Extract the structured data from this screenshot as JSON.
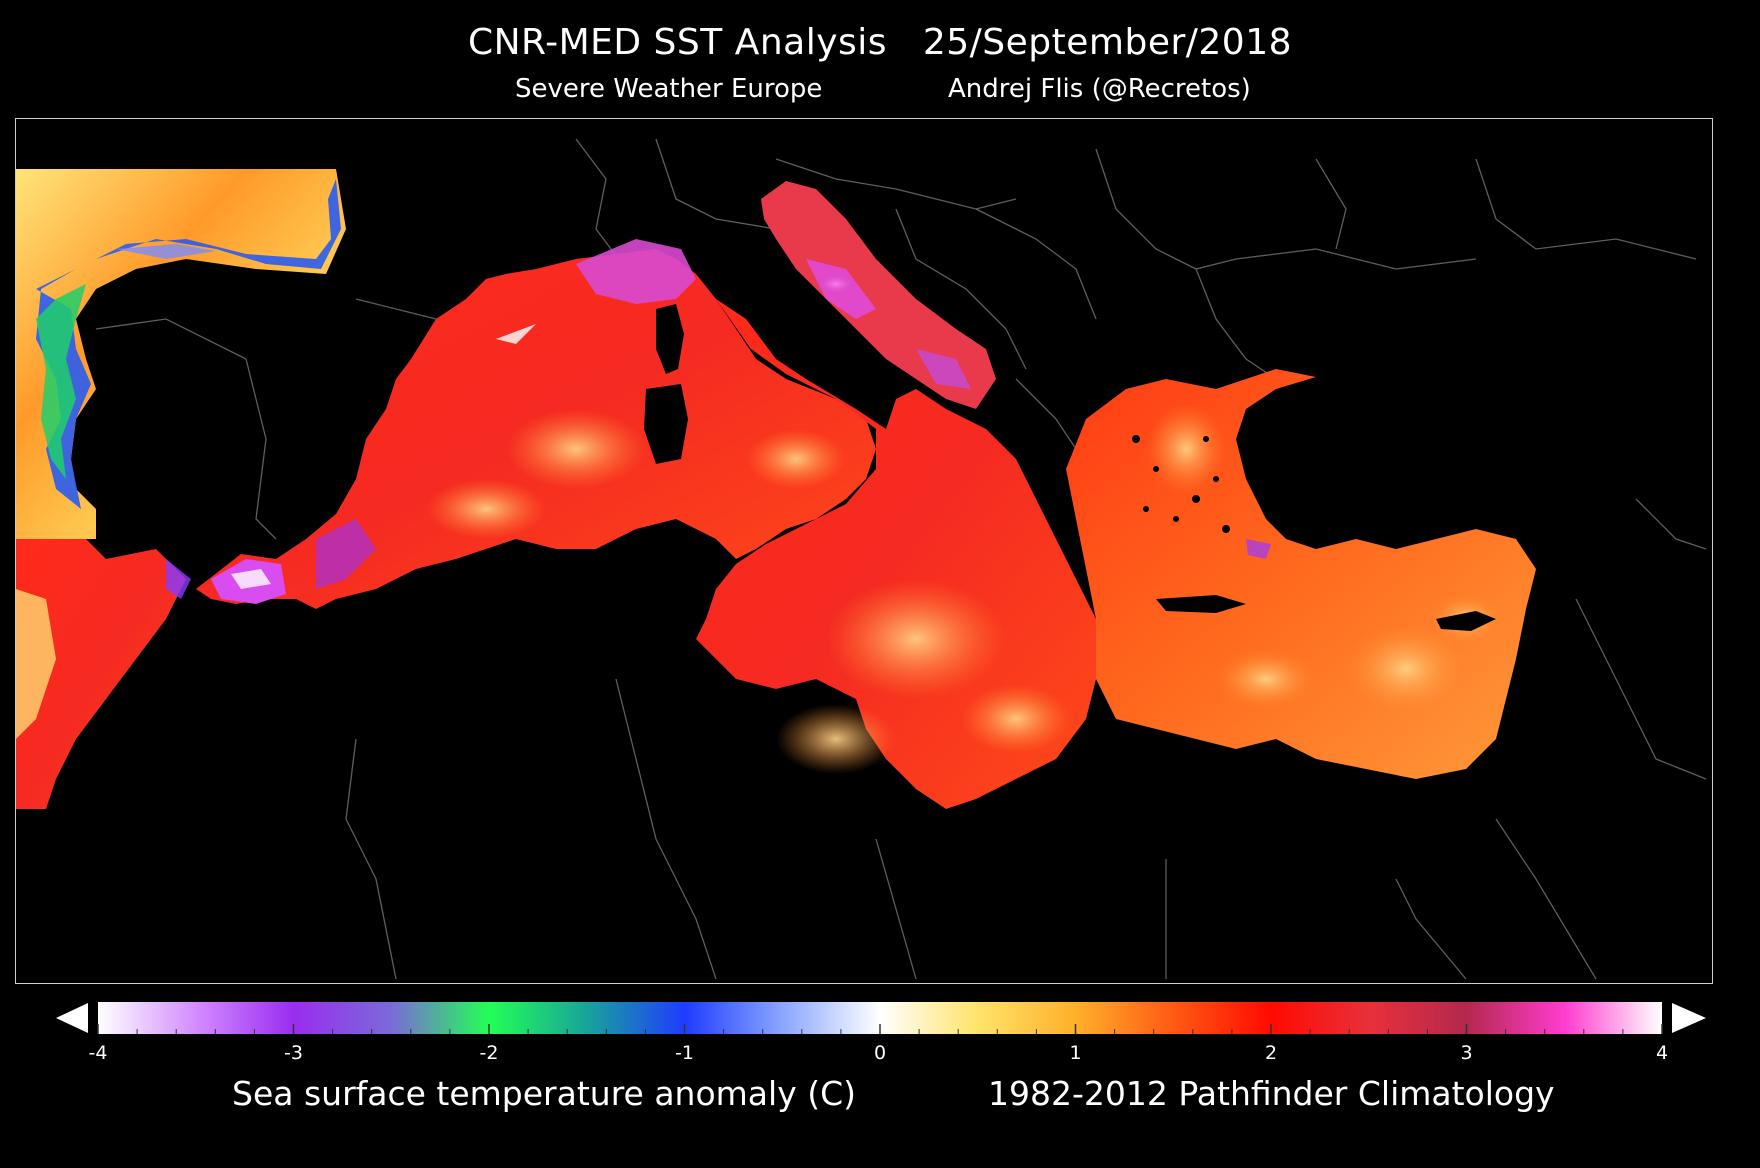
{
  "header": {
    "title": "CNR-MED SST Analysis   25/September/2018",
    "source": "Severe Weather Europe",
    "author": "Andrej Flis (@Recretos)"
  },
  "map": {
    "background_color": "#000000",
    "border_color": "#cfcfcf",
    "land_outline_color": "#6a6a6a",
    "region": "Mediterranean Sea and eastern North Atlantic"
  },
  "legend": {
    "caption_left": "Sea surface temperature anomaly (C)",
    "caption_right": "1982-2012 Pathfinder Climatology",
    "min": -4,
    "max": 4,
    "ticks": [
      "-4",
      "-3",
      "-2",
      "-1",
      "0",
      "1",
      "2",
      "3",
      "4"
    ],
    "color_stops": [
      {
        "value": -4,
        "color": "#ffffff"
      },
      {
        "value": -3.5,
        "color": "#d38cff"
      },
      {
        "value": -3,
        "color": "#9a2cf0"
      },
      {
        "value": -2.5,
        "color": "#7a6ad8"
      },
      {
        "value": -2,
        "color": "#22ff55"
      },
      {
        "value": -1.5,
        "color": "#18a39a"
      },
      {
        "value": -1,
        "color": "#1f3cff"
      },
      {
        "value": -0.5,
        "color": "#8aa6ff"
      },
      {
        "value": 0,
        "color": "#ffffff"
      },
      {
        "value": 0.5,
        "color": "#ffe36a"
      },
      {
        "value": 1,
        "color": "#ffb02a"
      },
      {
        "value": 1.5,
        "color": "#ff5a14"
      },
      {
        "value": 2,
        "color": "#ff0a00"
      },
      {
        "value": 2.5,
        "color": "#e8303a"
      },
      {
        "value": 3,
        "color": "#b4284e"
      },
      {
        "value": 3.5,
        "color": "#ff3cd0"
      },
      {
        "value": 4,
        "color": "#ffffff"
      }
    ]
  }
}
